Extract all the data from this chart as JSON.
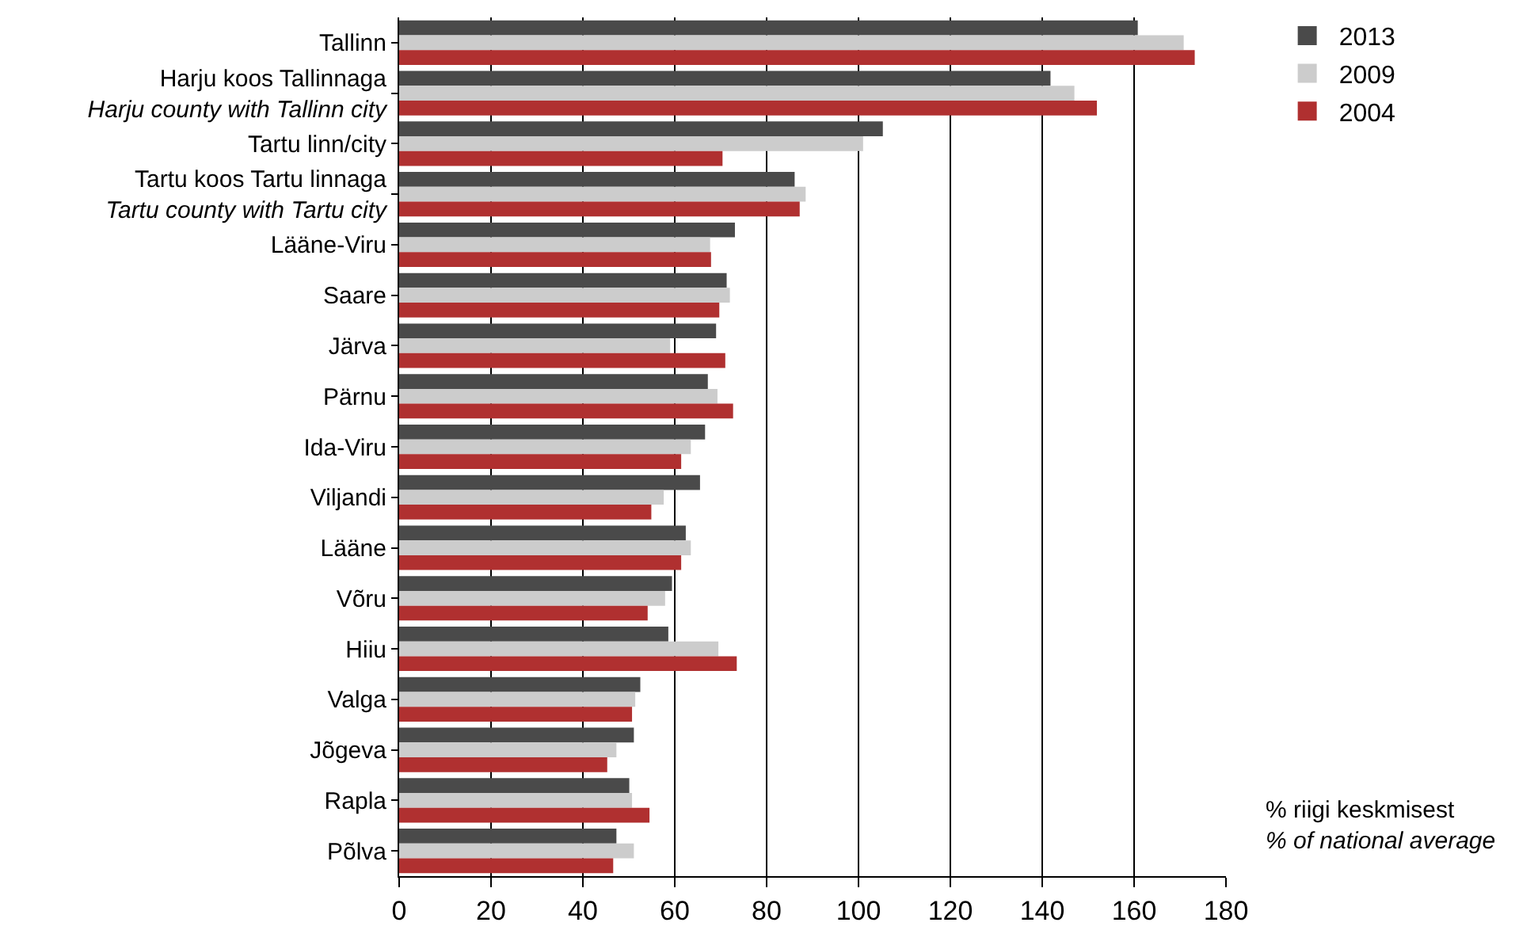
{
  "chart_data": {
    "type": "bar",
    "orientation": "horizontal",
    "categories": [
      "Tallinn",
      "Harju koos Tallinnaga\nHarju county with Tallinn city",
      "Tartu linn/city",
      "Tartu koos Tartu linnaga\nTartu county with Tartu city",
      "Lääne-Viru",
      "Saare",
      "Järva",
      "Pärnu",
      "Ida-Viru",
      "Viljandi",
      "Lääne",
      "Võru",
      "Hiiu",
      "Valga",
      "Jõgeva",
      "Rapla",
      "Põlva"
    ],
    "series": [
      {
        "name": "2013",
        "color": "#4a4a4a",
        "values": [
          160.8,
          141.8,
          105.3,
          86.1,
          73.1,
          71.3,
          69,
          67.2,
          66.6,
          65.5,
          62.4,
          59.4,
          58.6,
          52.5,
          51.1,
          50.1,
          47.3
        ]
      },
      {
        "name": "2009",
        "color": "#cccccc",
        "values": [
          170.8,
          147,
          101,
          88.5,
          67.7,
          72,
          59,
          69.3,
          63.5,
          57.6,
          63.5,
          57.9,
          69.5,
          51.4,
          47.3,
          50.7,
          51.1
        ]
      },
      {
        "name": "2004",
        "color": "#b03030",
        "values": [
          173.2,
          151.9,
          70.4,
          87.2,
          67.9,
          69.7,
          71,
          72.7,
          61.4,
          54.9,
          61.4,
          54.1,
          73.5,
          50.7,
          45.3,
          54.5,
          46.6
        ]
      }
    ],
    "xlim": [
      0,
      180
    ],
    "xticks": [
      0,
      20,
      40,
      60,
      80,
      100,
      120,
      140,
      160,
      180
    ],
    "grid": "x",
    "legend": "top right",
    "annotations": [
      "% riigi keskmisest\n% of national average"
    ]
  }
}
